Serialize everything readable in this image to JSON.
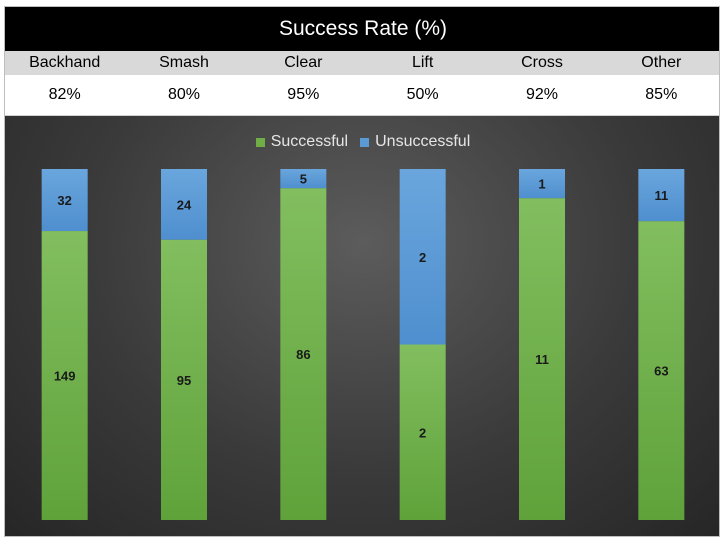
{
  "chart_data": {
    "type": "bar",
    "stacked": true,
    "normalized": true,
    "title": "Success Rate (%)",
    "categories": [
      "Backhand",
      "Smash",
      "Clear",
      "Lift",
      "Cross",
      "Other"
    ],
    "rate_labels": [
      "82%",
      "80%",
      "95%",
      "50%",
      "92%",
      "85%"
    ],
    "series": [
      {
        "name": "Successful",
        "color": "#70ad47",
        "values": [
          149,
          95,
          86,
          2,
          11,
          63
        ]
      },
      {
        "name": "Unsuccessful",
        "color": "#5b9bd5",
        "values": [
          32,
          24,
          5,
          2,
          1,
          11
        ]
      }
    ],
    "legend_position": "top",
    "grid": false
  }
}
